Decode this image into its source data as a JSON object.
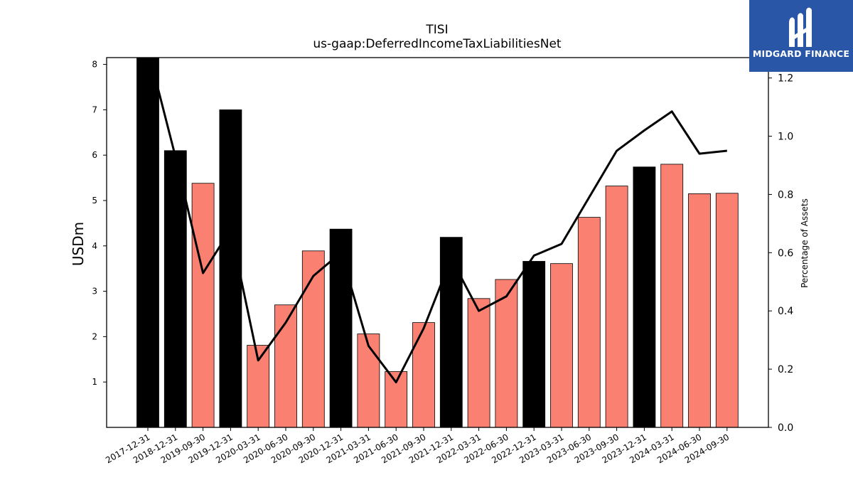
{
  "chart_data": {
    "type": "bar",
    "title": "TISI",
    "subtitle": "us-gaap:DeferredIncomeTaxLiabilitiesNet",
    "ylabel": "USDm",
    "y2label": "Percentage of Assets",
    "ylim": [
      0,
      8.15
    ],
    "y2lim": [
      0,
      1.27
    ],
    "yticks": [
      1,
      2,
      3,
      4,
      5,
      6,
      7,
      8
    ],
    "y2ticks": [
      0.0,
      0.2,
      0.4,
      0.6,
      0.8,
      1.0,
      1.2
    ],
    "y2tick_labels": [
      "0.0",
      "0.2",
      "0.4",
      "0.6",
      "0.8",
      "1.0",
      "1.2"
    ],
    "categories": [
      "2017-12-31",
      "2018-12-31",
      "2019-09-30",
      "2019-12-31",
      "2020-03-31",
      "2020-06-30",
      "2020-09-30",
      "2020-12-31",
      "2021-03-31",
      "2021-06-30",
      "2021-09-30",
      "2021-12-31",
      "2022-03-31",
      "2022-06-30",
      "2022-12-31",
      "2023-03-31",
      "2023-06-30",
      "2023-09-30",
      "2023-12-31",
      "2024-03-31",
      "2024-06-30",
      "2024-09-30"
    ],
    "values": [
      8.2,
      6.1,
      5.38,
      7.0,
      1.81,
      2.7,
      3.89,
      4.37,
      2.06,
      1.23,
      2.31,
      4.19,
      2.84,
      3.26,
      3.66,
      3.61,
      4.63,
      5.32,
      5.74,
      5.8,
      5.15,
      5.16
    ],
    "bar_colors": [
      "#000000",
      "#000000",
      "#fa8072",
      "#000000",
      "#fa8072",
      "#fa8072",
      "#fa8072",
      "#000000",
      "#fa8072",
      "#fa8072",
      "#fa8072",
      "#000000",
      "#fa8072",
      "#fa8072",
      "#000000",
      "#fa8072",
      "#fa8072",
      "#fa8072",
      "#000000",
      "#fa8072",
      "#fa8072",
      "#fa8072"
    ],
    "line_values": [
      1.3,
      0.93,
      0.53,
      0.68,
      0.23,
      0.36,
      0.52,
      0.6,
      0.28,
      0.155,
      0.34,
      0.58,
      0.4,
      0.45,
      0.59,
      0.63,
      0.79,
      0.95,
      1.02,
      1.085,
      0.94,
      0.95
    ],
    "colors": {
      "annual": "#000000",
      "quarterly": "#fa8072",
      "line": "#000000"
    }
  },
  "logo": {
    "text": "MIDGARD FINANCE",
    "background": "#2a56a8"
  }
}
